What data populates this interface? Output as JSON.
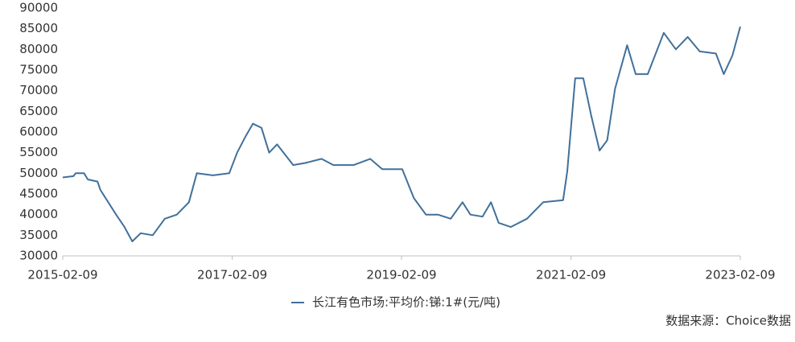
{
  "chart_data": {
    "type": "line",
    "x": [
      "2015-02-09",
      "2015-03-27",
      "2015-04-06",
      "2015-05-12",
      "2015-05-28",
      "2015-07-09",
      "2015-07-21",
      "2015-08-24",
      "2015-09-27",
      "2015-11-02",
      "2015-12-06",
      "2016-01-11",
      "2016-03-03",
      "2016-04-24",
      "2016-06-15",
      "2016-08-06",
      "2016-09-09",
      "2016-11-18",
      "2017-01-27",
      "2017-03-02",
      "2017-04-08",
      "2017-05-09",
      "2017-06-15",
      "2017-07-18",
      "2017-08-21",
      "2017-10-30",
      "2017-12-21",
      "2018-03-01",
      "2018-04-21",
      "2018-07-18",
      "2018-09-27",
      "2018-11-18",
      "2019-02-12",
      "2019-04-03",
      "2019-05-25",
      "2019-07-16",
      "2019-09-09",
      "2019-10-30",
      "2019-12-03",
      "2020-01-24",
      "2020-03-01",
      "2020-04-03",
      "2020-05-25",
      "2020-08-03",
      "2020-10-12",
      "2021-01-06",
      "2021-01-24",
      "2021-02-27",
      "2021-04-03",
      "2021-05-07",
      "2021-06-12",
      "2021-07-15",
      "2021-08-18",
      "2021-10-09",
      "2021-11-15",
      "2022-01-06",
      "2022-03-16",
      "2022-05-07",
      "2022-06-27",
      "2022-08-18",
      "2022-10-27",
      "2022-11-30",
      "2023-01-06",
      "2023-02-09"
    ],
    "series": [
      {
        "name": "长江有色市场:平均价:锑:1#(元/吨)",
        "color": "#41709b",
        "values": [
          49000,
          49300,
          50000,
          50000,
          48500,
          48000,
          46000,
          43000,
          40000,
          37000,
          33500,
          35500,
          35000,
          39000,
          40000,
          43000,
          50000,
          49500,
          50000,
          55000,
          59000,
          62000,
          61000,
          55000,
          57000,
          52000,
          52500,
          53500,
          52000,
          52000,
          53500,
          51000,
          51000,
          44000,
          40000,
          40000,
          39000,
          43000,
          40000,
          39500,
          43000,
          38000,
          37000,
          39000,
          43000,
          43500,
          50500,
          73000,
          73000,
          64000,
          55500,
          58000,
          70500,
          81000,
          74000,
          74000,
          84000,
          80000,
          83000,
          79500,
          79000,
          74000,
          78500,
          85500
        ]
      }
    ],
    "xlim": [
      "2015-02-09",
      "2023-02-09"
    ],
    "xticks": [
      "2015-02-09",
      "2017-02-09",
      "2019-02-09",
      "2021-02-09",
      "2023-02-09"
    ],
    "ylim": [
      30000,
      90000
    ],
    "yticks": [
      30000,
      35000,
      40000,
      45000,
      50000,
      55000,
      60000,
      65000,
      70000,
      75000,
      80000,
      85000,
      90000
    ],
    "grid": false,
    "source": "数据来源：Choice数据"
  }
}
